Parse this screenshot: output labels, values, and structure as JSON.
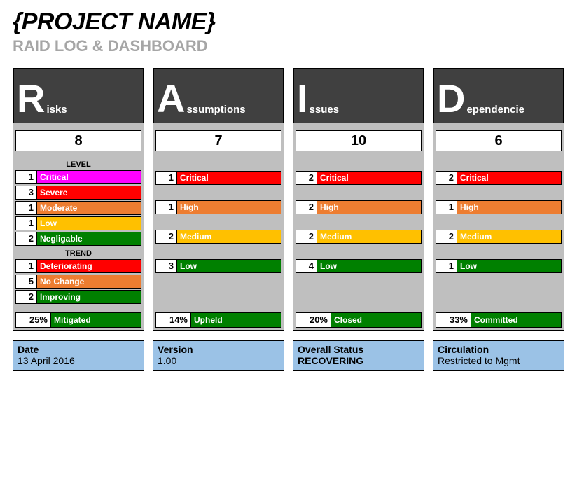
{
  "header": {
    "title": "{PROJECT NAME}",
    "subtitle": "RAID LOG & DASHBOARD"
  },
  "colors": {
    "panel_bg": "#bfbfbf",
    "header_bg": "#404040",
    "critical": "#ff0000",
    "critical_magenta": "#ff00ff",
    "severe": "#ff0000",
    "moderate": "#ed7d31",
    "high": "#ed7d31",
    "low_yellow": "#ffc000",
    "medium_yellow": "#ffc000",
    "negl_green": "#008000",
    "low_green": "#008000",
    "deter_red": "#ff0000",
    "nochange_orange": "#ed7d31",
    "improving_green": "#008000",
    "summary_green": "#008000",
    "footer_bg": "#9bc2e6"
  },
  "columns": [
    {
      "letter": "R",
      "word": "isks",
      "total": "8",
      "sections": [
        {
          "label": "LEVEL",
          "rows": [
            {
              "n": "1",
              "label": "Critical",
              "color": "#ff00ff"
            },
            {
              "n": "3",
              "label": "Severe",
              "color": "#ff0000"
            },
            {
              "n": "1",
              "label": "Moderate",
              "color": "#ed7d31"
            },
            {
              "n": "1",
              "label": "Low",
              "color": "#ffc000"
            },
            {
              "n": "2",
              "label": "Negligable",
              "color": "#008000"
            }
          ]
        },
        {
          "label": "TREND",
          "rows": [
            {
              "n": "1",
              "label": "Deteriorating",
              "color": "#ff0000"
            },
            {
              "n": "5",
              "label": "No Change",
              "color": "#ed7d31"
            },
            {
              "n": "2",
              "label": "Improving",
              "color": "#008000"
            }
          ]
        }
      ],
      "summary": {
        "pct": "25%",
        "label": "Mitigated",
        "color": "#008000"
      }
    },
    {
      "letter": "A",
      "word": "ssumptions",
      "total": "7",
      "sections": [
        {
          "label": "",
          "rows": [
            {
              "n": "1",
              "label": "Critical",
              "color": "#ff0000"
            },
            {
              "n": "1",
              "label": "High",
              "color": "#ed7d31"
            },
            {
              "n": "2",
              "label": "Medium",
              "color": "#ffc000"
            },
            {
              "n": "3",
              "label": "Low",
              "color": "#008000"
            }
          ],
          "spaced": true
        }
      ],
      "summary": {
        "pct": "14%",
        "label": "Upheld",
        "color": "#008000"
      }
    },
    {
      "letter": "I",
      "word": "ssues",
      "total": "10",
      "sections": [
        {
          "label": "",
          "rows": [
            {
              "n": "2",
              "label": "Critical",
              "color": "#ff0000"
            },
            {
              "n": "2",
              "label": "High",
              "color": "#ed7d31"
            },
            {
              "n": "2",
              "label": "Medium",
              "color": "#ffc000"
            },
            {
              "n": "4",
              "label": "Low",
              "color": "#008000"
            }
          ],
          "spaced": true
        }
      ],
      "summary": {
        "pct": "20%",
        "label": "Closed",
        "color": "#008000"
      }
    },
    {
      "letter": "D",
      "word": "ependencie",
      "total": "6",
      "sections": [
        {
          "label": "",
          "rows": [
            {
              "n": "2",
              "label": "Critical",
              "color": "#ff0000"
            },
            {
              "n": "1",
              "label": "High",
              "color": "#ed7d31"
            },
            {
              "n": "2",
              "label": "Medium",
              "color": "#ffc000"
            },
            {
              "n": "1",
              "label": "Low",
              "color": "#008000"
            }
          ],
          "spaced": true
        }
      ],
      "summary": {
        "pct": "33%",
        "label": "Committed",
        "color": "#008000"
      }
    }
  ],
  "footer": [
    {
      "title": "Date",
      "value": "13 April 2016",
      "bold": false
    },
    {
      "title": "Version",
      "value": "1.00",
      "bold": false
    },
    {
      "title": "Overall Status",
      "value": "RECOVERING",
      "bold": true
    },
    {
      "title": "Circulation",
      "value": "Restricted to Mgmt",
      "bold": false
    }
  ]
}
